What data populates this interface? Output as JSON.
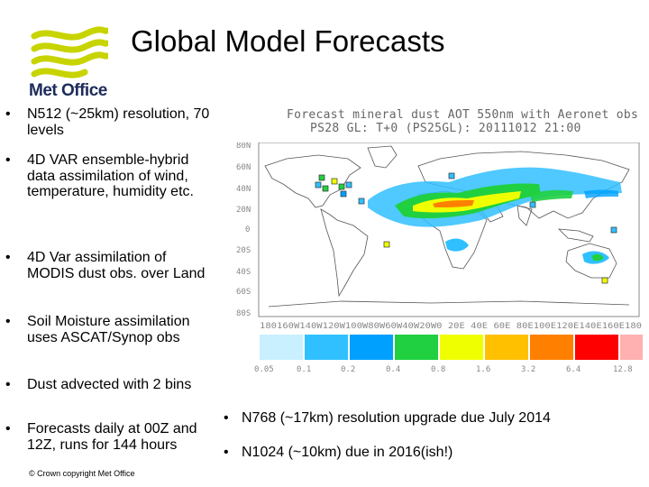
{
  "logo": {
    "text": "Met Office",
    "color": "#c8d400",
    "text_color": "#1d2b5a"
  },
  "title": "Global Model Forecasts",
  "left_bullets": [
    "N512 (~25km) resolution, 70 levels",
    "4D VAR ensemble-hybrid data assimilation of wind, temperature, humidity etc.",
    "4D Var assimilation of MODIS dust obs. over Land",
    "Soil Moisture assimilation uses ASCAT/Synop obs",
    "Dust advected with 2 bins",
    "Forecasts daily at 00Z and 12Z, runs for 144 hours"
  ],
  "map": {
    "title_line1": "Forecast mineral dust AOT 550nm with Aeronet obs",
    "title_line2": "PS28 GL: T+0 (PS25GL): 20111012 21:00",
    "lat_labels": [
      "80N",
      "60N",
      "40N",
      "20N",
      "0",
      "20S",
      "40S",
      "60S",
      "80S"
    ],
    "lon_labels": "180160W140W120W100W80W60W40W20W0 20E 40E 60E 80E100E120E140E160E180",
    "colorbar_ticks": [
      "0.05",
      "0.1",
      "0.2",
      "0.4",
      "0.8",
      "1.6",
      "3.2",
      "6.4",
      "12.8"
    ],
    "colorbar_colors": [
      "#c8f0ff",
      "#30c0ff",
      "#00a0ff",
      "#20d040",
      "#f0ff00",
      "#ffc000",
      "#ff8000",
      "#ff0000",
      "#ffb0b0"
    ]
  },
  "right_bullets": [
    "N768 (~17km) resolution upgrade due July 2014",
    "N1024 (~10km) due in 2016(ish!)"
  ],
  "copyright": "© Crown copyright   Met Office"
}
